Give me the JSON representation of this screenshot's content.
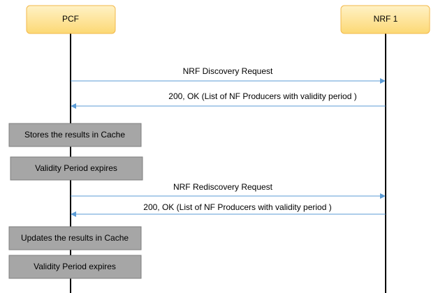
{
  "participants": [
    {
      "label": "PCF"
    },
    {
      "label": "NRF 1"
    }
  ],
  "messages": [
    {
      "label": "NRF Discovery Request"
    },
    {
      "label": "200, OK (List of NF Producers with validity period )"
    },
    {
      "label": "NRF Rediscovery Request"
    },
    {
      "label": "200, OK (List of NF Producers with validity period )"
    }
  ],
  "notes": [
    {
      "label": "Stores the results in Cache"
    },
    {
      "label": "Validity Period expires"
    },
    {
      "label": "Updates the results in Cache"
    },
    {
      "label": "Validity Period expires"
    }
  ]
}
